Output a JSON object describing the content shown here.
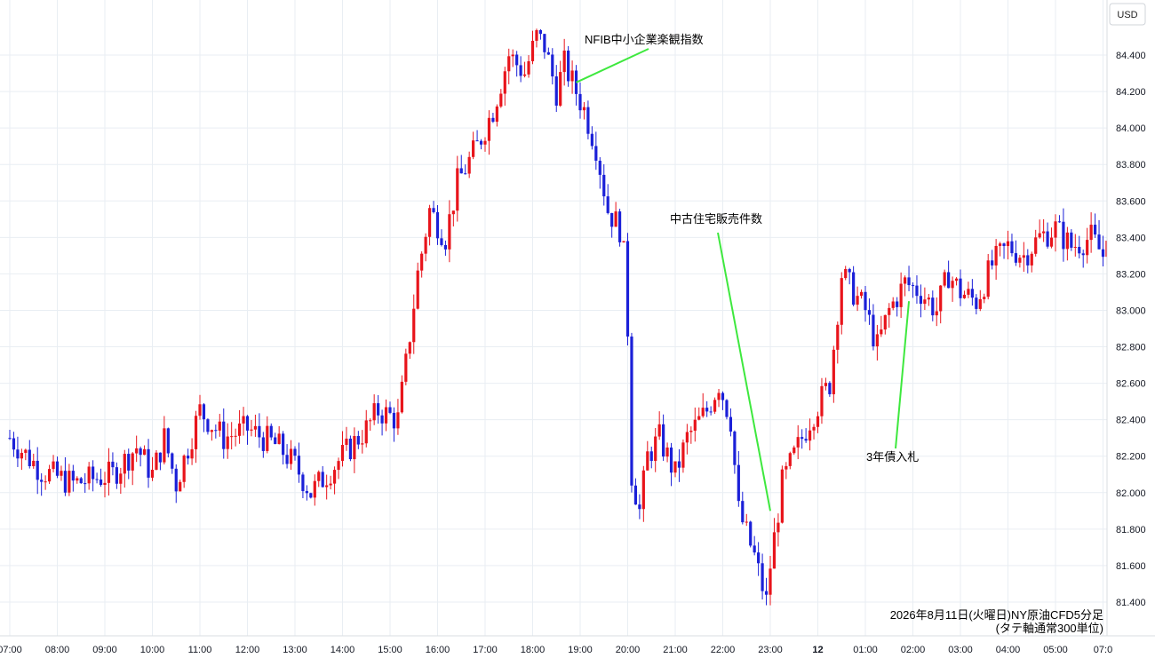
{
  "currency_label": "USD",
  "chart_data": {
    "type": "candlestick",
    "title": "2026年8月11日(火曜日)NY原油CFD5分足",
    "subtitle": "(タテ軸通常300単位)",
    "y_unit": "USD",
    "ylim": [
      81.25,
      84.6
    ],
    "y_ticks": [
      "81.400",
      "81.600",
      "81.800",
      "82.000",
      "82.200",
      "82.400",
      "82.600",
      "82.800",
      "83.000",
      "83.200",
      "83.400",
      "83.600",
      "83.800",
      "84.000",
      "84.200",
      "84.400"
    ],
    "x_ticks": [
      "07:00",
      "08:00",
      "09:00",
      "10:00",
      "11:00",
      "12:00",
      "13:00",
      "14:00",
      "15:00",
      "16:00",
      "17:00",
      "18:00",
      "19:00",
      "20:00",
      "21:00",
      "22:00",
      "23:00",
      "12",
      "01:00",
      "02:00",
      "03:00",
      "04:00",
      "05:00",
      "07:0"
    ],
    "grid": true,
    "colors": {
      "up": "#e8141b",
      "down": "#1b20d8",
      "annotation_line": "#3ee83e",
      "grid": "#e9eef3"
    },
    "candle_interval_min": 5,
    "anchors": [
      [
        "07:00",
        82.3
      ],
      [
        "07:40",
        82.12
      ],
      [
        "08:20",
        82.05
      ],
      [
        "09:10",
        82.1
      ],
      [
        "09:40",
        82.25
      ],
      [
        "10:00",
        82.1
      ],
      [
        "10:15",
        82.3
      ],
      [
        "10:30",
        82.05
      ],
      [
        "11:00",
        82.45
      ],
      [
        "11:30",
        82.3
      ],
      [
        "12:00",
        82.35
      ],
      [
        "12:20",
        82.3
      ],
      [
        "12:40",
        82.25
      ],
      [
        "13:00",
        82.15
      ],
      [
        "13:20",
        82.0
      ],
      [
        "13:40",
        82.1
      ],
      [
        "14:10",
        82.25
      ],
      [
        "14:30",
        82.35
      ],
      [
        "14:45",
        82.45
      ],
      [
        "15:10",
        82.4
      ],
      [
        "15:20",
        82.7
      ],
      [
        "15:35",
        83.2
      ],
      [
        "15:50",
        83.55
      ],
      [
        "16:10",
        83.4
      ],
      [
        "16:25",
        83.7
      ],
      [
        "16:50",
        83.9
      ],
      [
        "17:10",
        84.1
      ],
      [
        "17:30",
        84.4
      ],
      [
        "17:50",
        84.3
      ],
      [
        "18:05",
        84.5
      ],
      [
        "18:15",
        84.45
      ],
      [
        "18:30",
        84.2
      ],
      [
        "18:40",
        84.35
      ],
      [
        "18:55",
        84.2
      ],
      [
        "19:05",
        84.1
      ],
      [
        "19:20",
        83.9
      ],
      [
        "19:35",
        83.55
      ],
      [
        "19:50",
        83.45
      ],
      [
        "19:55",
        83.3
      ],
      [
        "20:00",
        82.9
      ],
      [
        "20:05",
        82.1
      ],
      [
        "20:15",
        81.9
      ],
      [
        "20:25",
        82.2
      ],
      [
        "20:40",
        82.3
      ],
      [
        "21:00",
        82.1
      ],
      [
        "21:15",
        82.3
      ],
      [
        "21:40",
        82.45
      ],
      [
        "21:55",
        82.6
      ],
      [
        "22:10",
        82.4
      ],
      [
        "22:20",
        81.9
      ],
      [
        "22:40",
        81.65
      ],
      [
        "22:55",
        81.4
      ],
      [
        "23:00",
        81.6
      ],
      [
        "23:15",
        82.05
      ],
      [
        "23:30",
        82.2
      ],
      [
        "23:50",
        82.4
      ],
      [
        "00:15",
        82.6
      ],
      [
        "00:30",
        83.2
      ],
      [
        "00:45",
        83.1
      ],
      [
        "01:00",
        83.0
      ],
      [
        "01:15",
        82.8
      ],
      [
        "01:30",
        83.0
      ],
      [
        "01:50",
        83.15
      ],
      [
        "02:10",
        83.1
      ],
      [
        "02:30",
        83.0
      ],
      [
        "02:45",
        83.2
      ],
      [
        "03:00",
        83.1
      ],
      [
        "03:20",
        83.05
      ],
      [
        "03:40",
        83.25
      ],
      [
        "04:00",
        83.35
      ],
      [
        "04:20",
        83.3
      ],
      [
        "04:40",
        83.4
      ],
      [
        "05:00",
        83.45
      ],
      [
        "05:20",
        83.35
      ],
      [
        "05:45",
        83.4
      ],
      [
        "06:00",
        83.3
      ],
      [
        "06:05",
        83.45
      ]
    ],
    "annotations": [
      {
        "label": "NFIB中小企業楽観指数",
        "time": "18:55",
        "price": 84.25
      },
      {
        "label": "中古住宅販売件数",
        "time": "23:00",
        "price": 81.9
      },
      {
        "label": "3年債入札",
        "time": "01:55",
        "price": 83.05
      }
    ]
  }
}
